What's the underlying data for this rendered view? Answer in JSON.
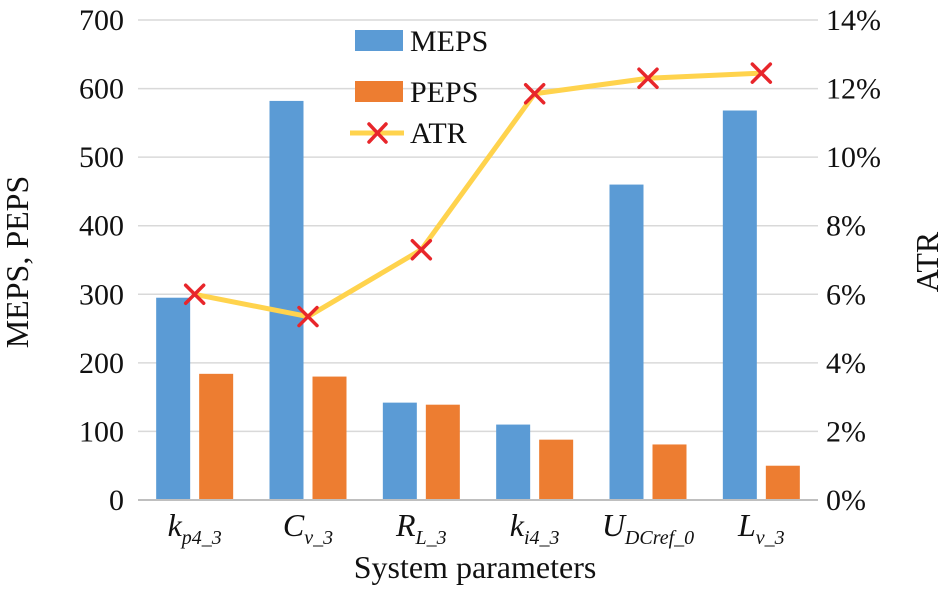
{
  "chart_data": {
    "type": "bar",
    "title": "",
    "xlabel": "System parameters",
    "ylabel": "MEPS, PEPS",
    "y2label": "ATR",
    "ylim": [
      0,
      700
    ],
    "y2lim": [
      0,
      14
    ],
    "yticks": [
      "0",
      "100",
      "200",
      "300",
      "400",
      "500",
      "600",
      "700"
    ],
    "y2ticks": [
      "0%",
      "2%",
      "4%",
      "6%",
      "8%",
      "10%",
      "12%",
      "14%"
    ],
    "categories": [
      {
        "main": "k",
        "sub": "p4_3"
      },
      {
        "main": "C",
        "sub": "v_3"
      },
      {
        "main": "R",
        "sub": "L_3"
      },
      {
        "main": "k",
        "sub": "i4_3"
      },
      {
        "main": "U",
        "sub": "DCref_0"
      },
      {
        "main": "L",
        "sub": "v_3"
      }
    ],
    "series": [
      {
        "name": "MEPS",
        "kind": "bar",
        "axis": "left",
        "color": "#5b9bd5",
        "values": [
          295,
          582,
          142,
          110,
          460,
          568
        ]
      },
      {
        "name": "PEPS",
        "kind": "bar",
        "axis": "left",
        "color": "#ed7d31",
        "values": [
          184,
          180,
          139,
          88,
          81,
          50
        ]
      },
      {
        "name": "ATR",
        "kind": "line",
        "axis": "right",
        "color": "#ffd34d",
        "marker_color": "#e8262b",
        "values": [
          6.0,
          5.35,
          7.3,
          11.85,
          12.3,
          12.45
        ]
      }
    ],
    "legend": {
      "position": "top-center",
      "entries": [
        "MEPS",
        "PEPS",
        "ATR"
      ]
    }
  }
}
